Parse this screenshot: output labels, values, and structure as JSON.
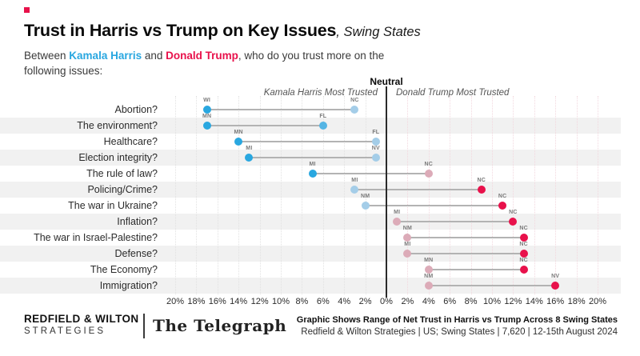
{
  "header": {
    "title": "Trust in Harris vs Trump on Key Issues",
    "title_suffix": ", Swing States",
    "subtitle": {
      "before": "Between ",
      "harris": "Kamala Harris",
      "conj": " and ",
      "trump": "Donald Trump",
      "after": ", who do you trust more on the",
      "line2": "following issues:"
    }
  },
  "colors": {
    "harris_solid": "#29a7e0",
    "harris_medium": "#55b5e4",
    "harris_light": "#a4cde8",
    "trump_solid": "#e8114b",
    "trump_light": "#dcabb8",
    "connector": "#b3b3b3"
  },
  "chart_data": {
    "type": "dumbbell",
    "title": "Trust in Harris vs Trump on Key Issues, Swing States",
    "axis": {
      "min": -20,
      "max": 20,
      "step": 2,
      "unit": "%",
      "neutral_label": "Neutral",
      "left_label": "Kamala Harris Most Trusted",
      "right_label": "Donald Trump Most Trusted"
    },
    "value_convention": "negative = net trust advantage for Harris, positive = net trust advantage for Trump",
    "rows": [
      {
        "issue": "Abortion?",
        "points": [
          {
            "state": "WI",
            "value": -17,
            "color": "#29a7e0"
          },
          {
            "state": "NC",
            "value": -3,
            "color": "#a4cde8"
          }
        ]
      },
      {
        "issue": "The environment?",
        "points": [
          {
            "state": "MN",
            "value": -17,
            "color": "#29a7e0"
          },
          {
            "state": "FL",
            "value": -6,
            "color": "#55b5e4"
          }
        ]
      },
      {
        "issue": "Healthcare?",
        "points": [
          {
            "state": "MN",
            "value": -14,
            "color": "#29a7e0"
          },
          {
            "state": "FL",
            "value": -1,
            "color": "#a4cde8"
          }
        ]
      },
      {
        "issue": "Election integrity?",
        "points": [
          {
            "state": "MI",
            "value": -13,
            "color": "#29a7e0"
          },
          {
            "state": "NV",
            "value": -1,
            "color": "#a4cde8"
          }
        ]
      },
      {
        "issue": "The rule of law?",
        "points": [
          {
            "state": "MI",
            "value": -7,
            "color": "#29a7e0"
          },
          {
            "state": "NC",
            "value": 4,
            "color": "#dcabb8"
          }
        ]
      },
      {
        "issue": "Policing/Crime?",
        "points": [
          {
            "state": "MI",
            "value": -3,
            "color": "#a4cde8"
          },
          {
            "state": "NC",
            "value": 9,
            "color": "#e8114b"
          }
        ]
      },
      {
        "issue": "The war in Ukraine?",
        "points": [
          {
            "state": "NM",
            "value": -2,
            "color": "#a4cde8"
          },
          {
            "state": "NC",
            "value": 11,
            "color": "#e8114b"
          }
        ]
      },
      {
        "issue": "Inflation?",
        "points": [
          {
            "state": "MI",
            "value": 1,
            "color": "#dcabb8"
          },
          {
            "state": "NC",
            "value": 12,
            "color": "#e8114b"
          }
        ]
      },
      {
        "issue": "The war in Israel-Palestine?",
        "points": [
          {
            "state": "NM",
            "value": 2,
            "color": "#dcabb8"
          },
          {
            "state": "NC",
            "value": 13,
            "color": "#e8114b"
          }
        ]
      },
      {
        "issue": "Defense?",
        "points": [
          {
            "state": "MI",
            "value": 2,
            "color": "#dcabb8"
          },
          {
            "state": "NC",
            "value": 13,
            "color": "#e8114b"
          }
        ]
      },
      {
        "issue": "The Economy?",
        "points": [
          {
            "state": "MN",
            "value": 4,
            "color": "#dcabb8"
          },
          {
            "state": "NC",
            "value": 13,
            "color": "#e8114b"
          }
        ]
      },
      {
        "issue": "Immigration?",
        "points": [
          {
            "state": "NM",
            "value": 4,
            "color": "#dcabb8"
          },
          {
            "state": "NV",
            "value": 16,
            "color": "#e8114b"
          }
        ]
      }
    ]
  },
  "footer": {
    "brand_line1": "REDFIELD & WILTON",
    "brand_line2": "STRATEGIES",
    "telegraph_logo": "The Telegraph",
    "note_bold": "Graphic Shows Range of Net Trust in Harris vs Trump Across 8 Swing States",
    "note": "Redfield & Wilton Strategies | US; Swing States | 7,620 | 12-15th August 2024"
  }
}
